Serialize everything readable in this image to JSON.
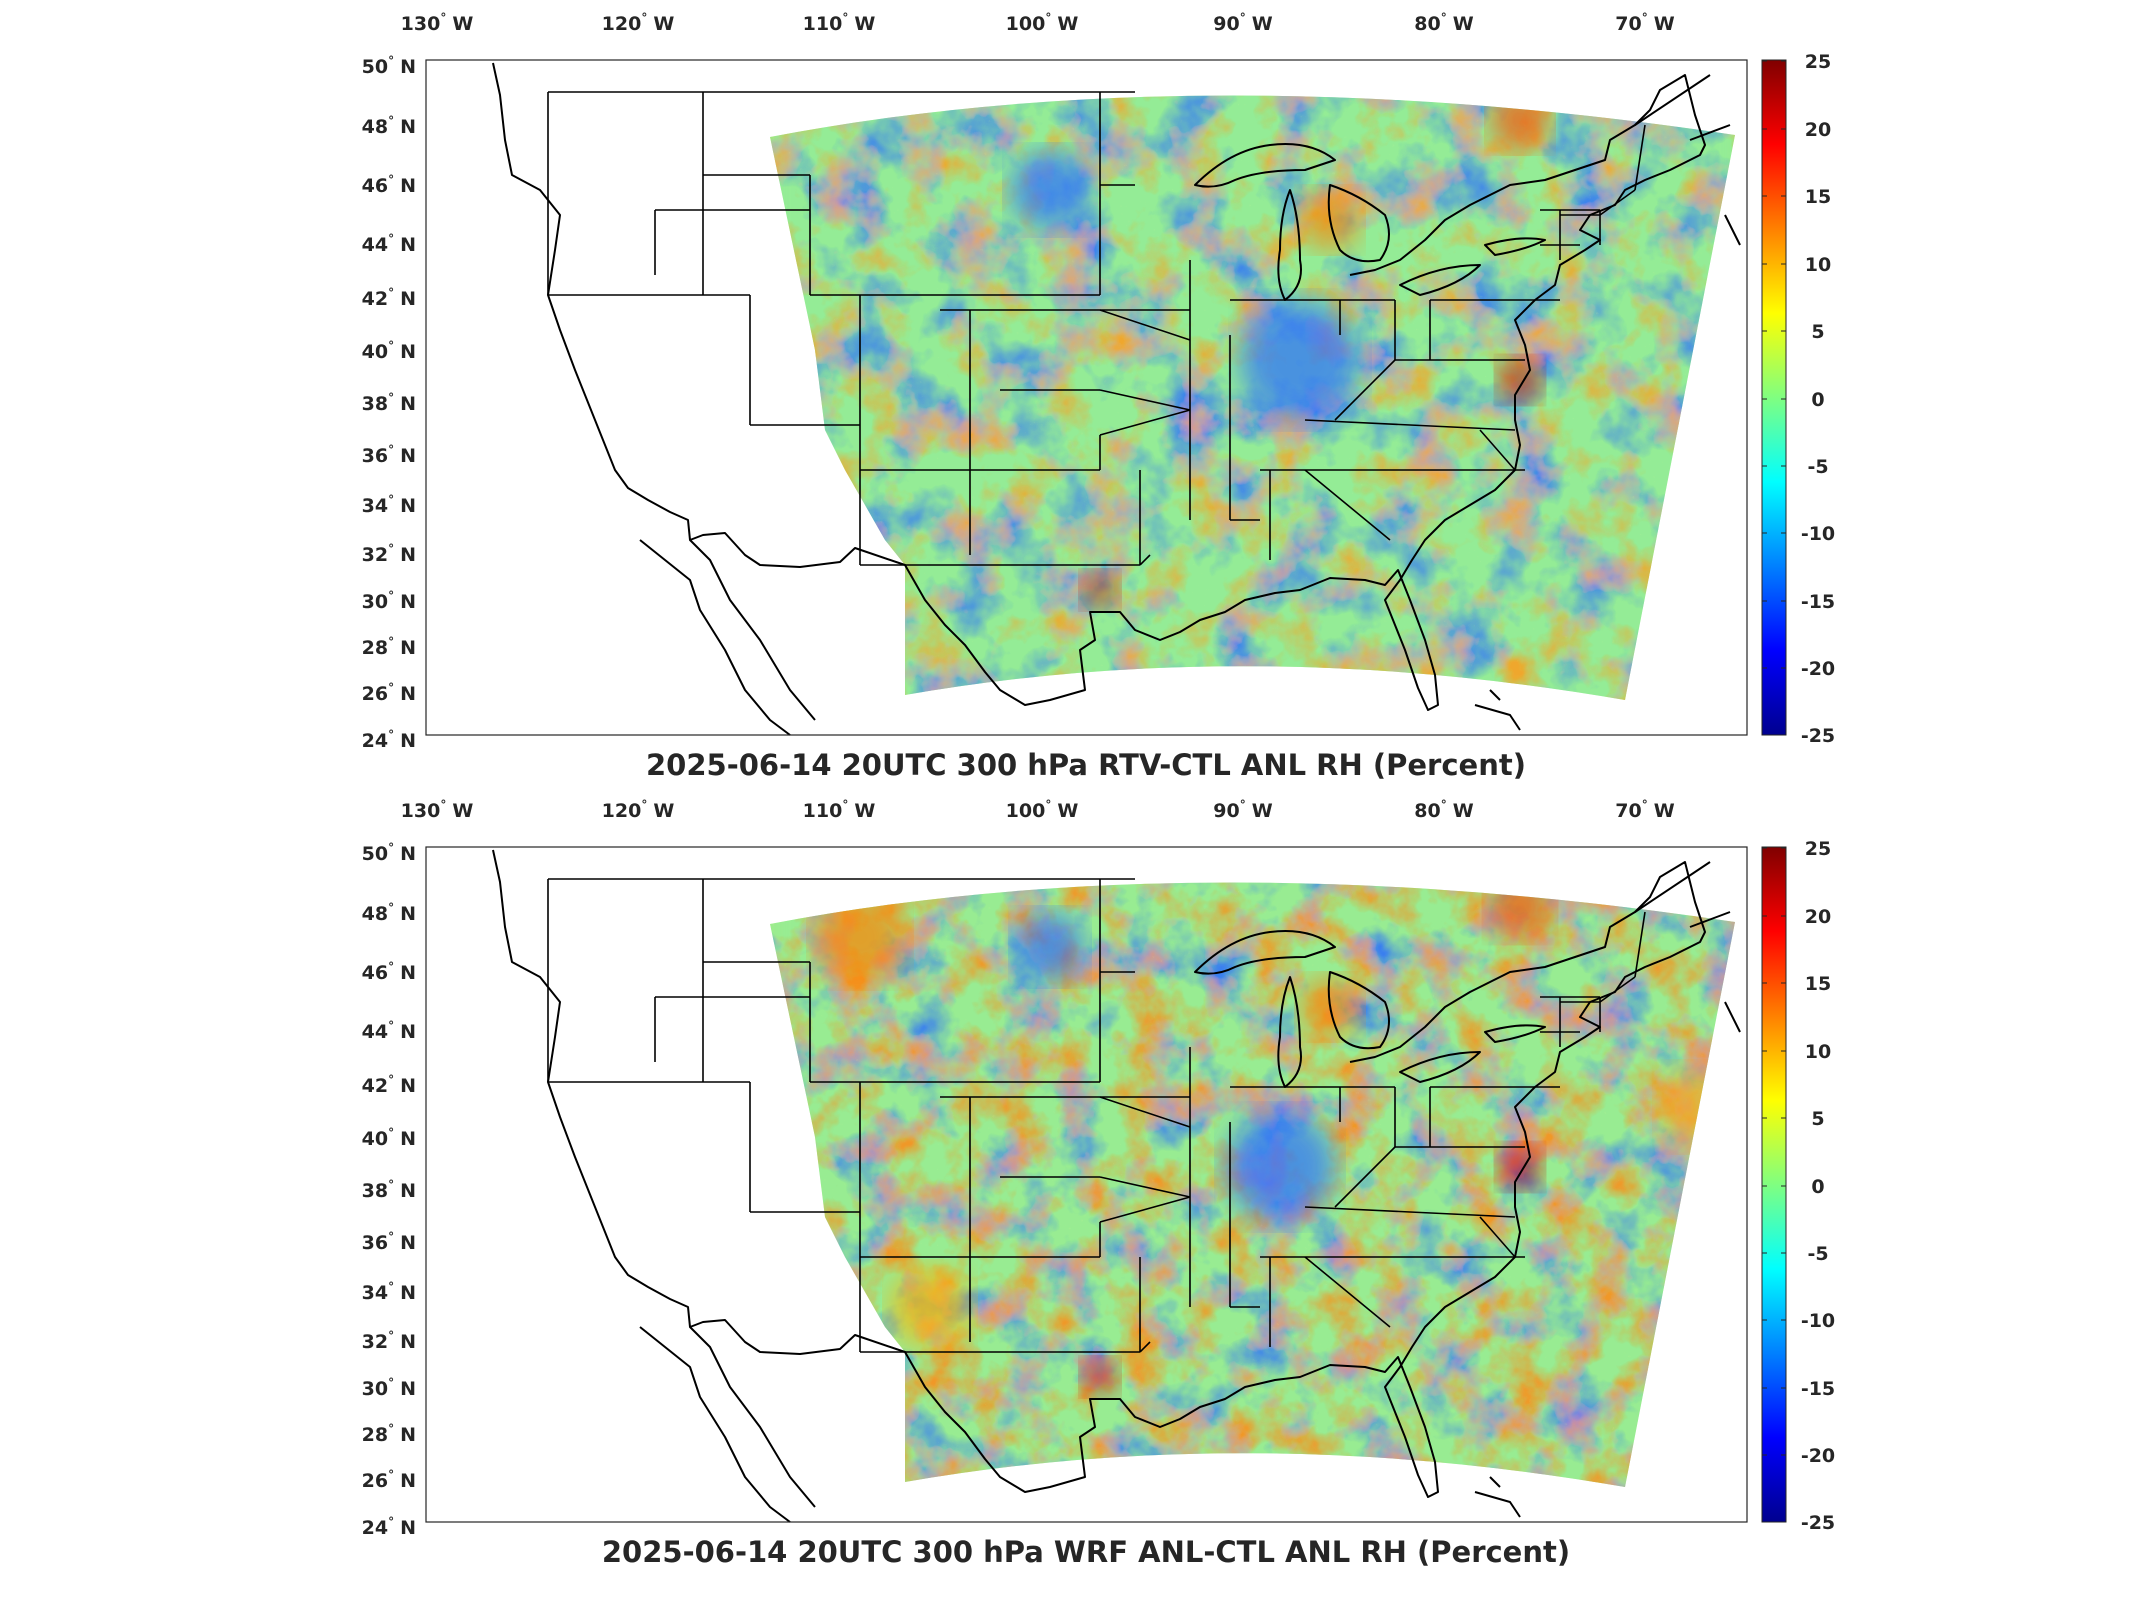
{
  "panels": [
    {
      "title": "2025-06-14 20UTC 300 hPa RTV-CTL ANL RH (Percent)",
      "variant": "a"
    },
    {
      "title": "2025-06-14 20UTC 300 hPa WRF ANL-CTL ANL RH (Percent)",
      "variant": "b"
    }
  ],
  "axes": {
    "lon_labels": [
      "130",
      "120",
      "110",
      "100",
      "90",
      "80",
      "70"
    ],
    "lon_hemi": "W",
    "lat_labels": [
      "50",
      "48",
      "46",
      "44",
      "42",
      "40",
      "38",
      "36",
      "34",
      "32",
      "30",
      "28",
      "26",
      "24"
    ],
    "lat_hemi": "N",
    "degree_symbol": "°"
  },
  "colorbar": {
    "colormap": "jet",
    "range": [
      -25,
      25
    ],
    "tick_labels": [
      "25",
      "20",
      "15",
      "10",
      "5",
      "0",
      "-5",
      "-10",
      "-15",
      "-20",
      "-25"
    ],
    "colors": [
      "#00008f",
      "#0000ff",
      "#0080ff",
      "#00ffff",
      "#80ff80",
      "#ffff00",
      "#ff8000",
      "#ff0000",
      "#800000"
    ]
  },
  "chart_data": [
    {
      "type": "heatmap",
      "title": "2025-06-14 20UTC 300 hPa RTV-CTL ANL RH (Percent)",
      "x_axis": "longitude",
      "y_axis": "latitude",
      "xlim": [
        -132,
        -65
      ],
      "ylim": [
        24,
        50
      ],
      "zlim": [
        -25,
        25
      ]
    },
    {
      "type": "heatmap",
      "title": "2025-06-14 20UTC 300 hPa WRF ANL-CTL ANL RH (Percent)",
      "x_axis": "longitude",
      "y_axis": "latitude",
      "xlim": [
        -132,
        -65
      ],
      "ylim": [
        24,
        50
      ],
      "zlim": [
        -25,
        25
      ]
    }
  ]
}
